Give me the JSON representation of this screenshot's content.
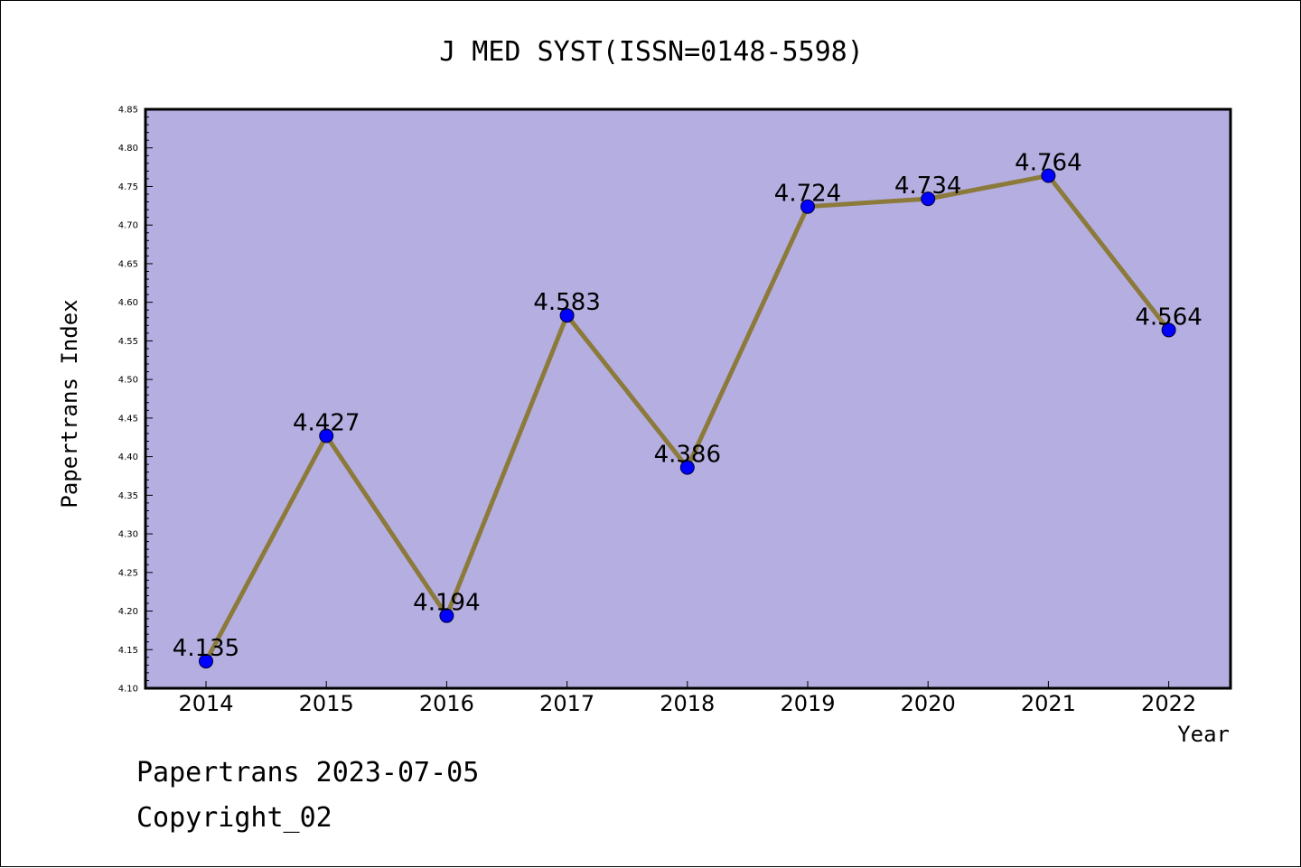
{
  "chart_data": {
    "type": "line",
    "title": "J MED SYST(ISSN=0148-5598)",
    "xlabel": "Year",
    "ylabel": "Papertrans Index",
    "categories": [
      "2014",
      "2015",
      "2016",
      "2017",
      "2018",
      "2019",
      "2020",
      "2021",
      "2022"
    ],
    "values": [
      4.135,
      4.427,
      4.194,
      4.583,
      4.386,
      4.724,
      4.734,
      4.764,
      4.564
    ],
    "data_labels": [
      "4.135",
      "4.427",
      "4.194",
      "4.583",
      "4.386",
      "4.724",
      "4.734",
      "4.764",
      "4.564"
    ],
    "ylim": [
      4.1,
      4.85
    ],
    "yticks": [
      "4.10",
      "4.15",
      "4.20",
      "4.25",
      "4.30",
      "4.35",
      "4.40",
      "4.45",
      "4.50",
      "4.55",
      "4.60",
      "4.65",
      "4.70",
      "4.75",
      "4.80",
      "4.85"
    ],
    "grid": false,
    "colors": {
      "plot_background": "#b5aee1",
      "line": "#8b7a3a",
      "marker": "#0000ff"
    }
  },
  "footer": {
    "line1": "Papertrans 2023-07-05",
    "line2": "Copyright_02"
  }
}
